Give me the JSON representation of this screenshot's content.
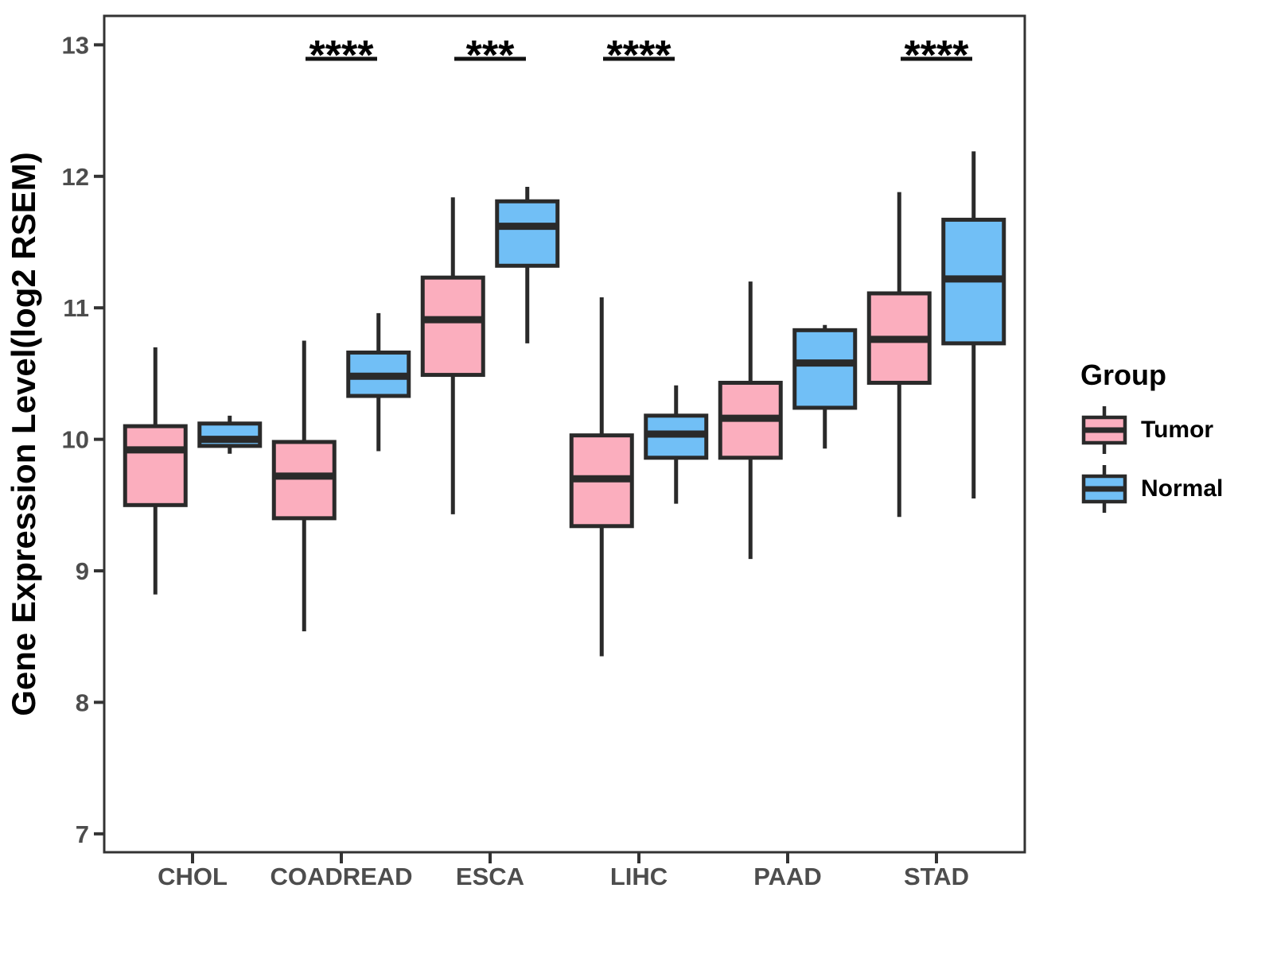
{
  "figure": {
    "background": "#FFFFFF",
    "panel_border_color": "#333333",
    "axis_text_color": "#4D4D4D",
    "line_color": "#2A2A2A"
  },
  "y_axis": {
    "title": "Gene Expression Level(log2 RSEM)",
    "ticks": [
      7,
      8,
      9,
      10,
      11,
      12,
      13
    ]
  },
  "x_axis": {
    "categories": [
      "CHOL",
      "COADREAD",
      "ESCA",
      "LIHC",
      "PAAD",
      "STAD"
    ]
  },
  "legend": {
    "title": "Group",
    "items": [
      {
        "label": "Tumor",
        "color": "#FBAEBE"
      },
      {
        "label": "Normal",
        "color": "#71BFF6"
      }
    ]
  },
  "significance": [
    {
      "category": "COADREAD",
      "label": "****"
    },
    {
      "category": "ESCA",
      "label": "***"
    },
    {
      "category": "LIHC",
      "label": "****"
    },
    {
      "category": "STAD",
      "label": "****"
    }
  ],
  "chart_data": {
    "type": "boxplot",
    "title": "",
    "xlabel": "",
    "ylabel": "Gene Expression Level(log2 RSEM)",
    "ylim": [
      6.86,
      13.22
    ],
    "grid": false,
    "legend_position": "right",
    "box_border": "#2A2A2A",
    "categories": [
      "CHOL",
      "COADREAD",
      "ESCA",
      "LIHC",
      "PAAD",
      "STAD"
    ],
    "series": [
      {
        "name": "Tumor",
        "color": "#FBAEBE",
        "boxes": [
          {
            "min": 8.82,
            "q1": 9.5,
            "median": 9.92,
            "q3": 10.1,
            "max": 10.7
          },
          {
            "min": 8.54,
            "q1": 9.4,
            "median": 9.72,
            "q3": 9.98,
            "max": 10.75
          },
          {
            "min": 9.43,
            "q1": 10.49,
            "median": 10.91,
            "q3": 11.23,
            "max": 11.84
          },
          {
            "min": 8.35,
            "q1": 9.34,
            "median": 9.7,
            "q3": 10.03,
            "max": 11.08
          },
          {
            "min": 9.09,
            "q1": 9.86,
            "median": 10.16,
            "q3": 10.43,
            "max": 11.2
          },
          {
            "min": 9.41,
            "q1": 10.43,
            "median": 10.76,
            "q3": 11.11,
            "max": 11.88
          }
        ]
      },
      {
        "name": "Normal",
        "color": "#71BFF6",
        "boxes": [
          {
            "min": 9.89,
            "q1": 9.95,
            "median": 10.0,
            "q3": 10.12,
            "max": 10.18
          },
          {
            "min": 9.91,
            "q1": 10.33,
            "median": 10.48,
            "q3": 10.66,
            "max": 10.96
          },
          {
            "min": 10.73,
            "q1": 11.32,
            "median": 11.62,
            "q3": 11.81,
            "max": 11.92
          },
          {
            "min": 9.51,
            "q1": 9.86,
            "median": 10.04,
            "q3": 10.18,
            "max": 10.41
          },
          {
            "min": 9.93,
            "q1": 10.24,
            "median": 10.58,
            "q3": 10.83,
            "max": 10.87
          },
          {
            "min": 9.55,
            "q1": 10.73,
            "median": 11.22,
            "q3": 11.67,
            "max": 12.19
          }
        ]
      }
    ]
  }
}
